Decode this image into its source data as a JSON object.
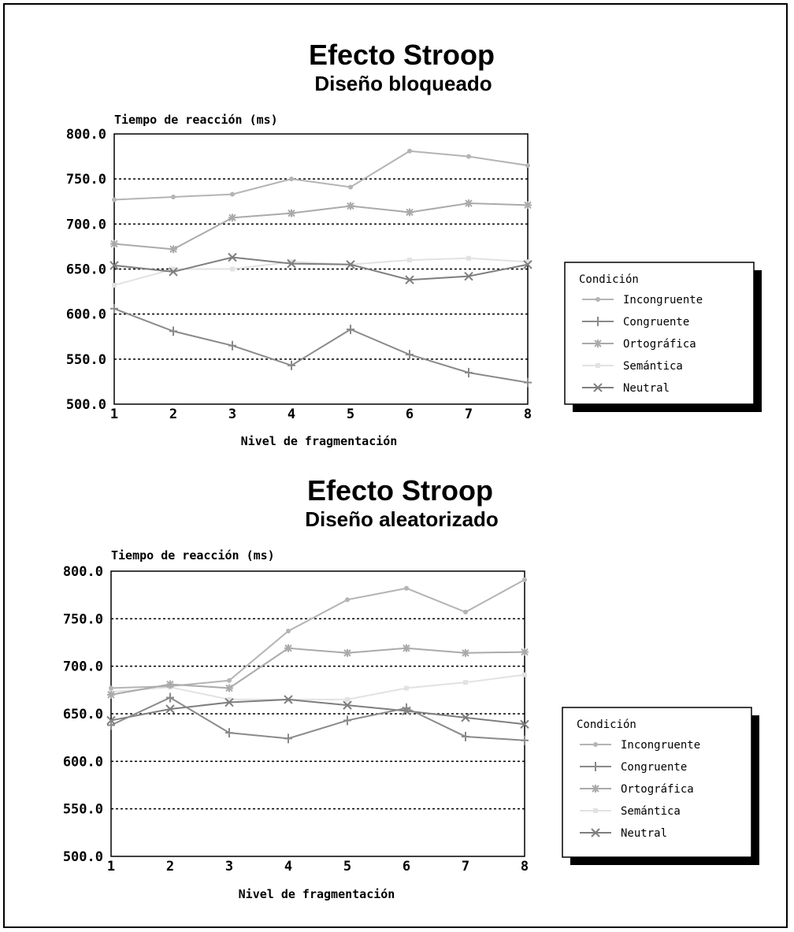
{
  "chart_data": [
    {
      "type": "line",
      "title": "Efecto Stroop",
      "subtitle": "Diseño bloqueado",
      "ylabel": "Tiempo de reacción (ms)",
      "xlabel": "Nivel de fragmentación",
      "x": [
        1,
        2,
        3,
        4,
        5,
        6,
        7,
        8
      ],
      "x_tick_labels": [
        "1",
        "2",
        "3",
        "4",
        "5",
        "6",
        "7",
        "8"
      ],
      "ylim": [
        500,
        800
      ],
      "y_tick_labels": [
        "800.0",
        "750.0",
        "700.0",
        "650.0",
        "600.0",
        "550.0",
        "500.0"
      ],
      "grid": "horizontal dotted",
      "legend": {
        "title": "Condición",
        "placement": "right",
        "entries": [
          "Incongruente",
          "Congruente",
          "Ortográfica",
          "Semántica",
          "Neutral"
        ]
      },
      "series": [
        {
          "name": "Incongruente",
          "marker": "dot",
          "color": "#b4b4b4",
          "values": [
            727,
            730,
            733,
            750,
            741,
            781,
            775,
            765
          ]
        },
        {
          "name": "Congruente",
          "marker": "plus",
          "color": "#8a8a8a",
          "values": [
            606,
            581,
            565,
            543,
            583,
            555,
            535,
            524
          ]
        },
        {
          "name": "Ortográfica",
          "marker": "asterisk",
          "color": "#aaaaaa",
          "values": [
            678,
            672,
            707,
            712,
            720,
            713,
            723,
            721
          ]
        },
        {
          "name": "Semántica",
          "marker": "square",
          "color": "#e2e2e2",
          "values": [
            632,
            650,
            650,
            658,
            655,
            660,
            662,
            658
          ]
        },
        {
          "name": "Neutral",
          "marker": "x",
          "color": "#7e7e7e",
          "values": [
            654,
            647,
            663,
            656,
            655,
            638,
            642,
            655
          ]
        }
      ]
    },
    {
      "type": "line",
      "title": "Efecto Stroop",
      "subtitle": "Diseño aleatorizado",
      "ylabel": "Tiempo de reacción (ms)",
      "xlabel": "Nivel de fragmentación",
      "x": [
        1,
        2,
        3,
        4,
        5,
        6,
        7,
        8
      ],
      "x_tick_labels": [
        "1",
        "2",
        "3",
        "4",
        "5",
        "6",
        "7",
        "8"
      ],
      "ylim": [
        500,
        800
      ],
      "y_tick_labels": [
        "800.0",
        "750.0",
        "700.0",
        "650.0",
        "600.0",
        "550.0",
        "500.0"
      ],
      "grid": "horizontal dotted",
      "legend": {
        "title": "Condición",
        "placement": "right",
        "entries": [
          "Incongruente",
          "Congruente",
          "Ortográfica",
          "Semántica",
          "Neutral"
        ]
      },
      "series": [
        {
          "name": "Incongruente",
          "marker": "dot",
          "color": "#b4b4b4",
          "values": [
            677,
            679,
            685,
            737,
            770,
            782,
            757,
            791
          ]
        },
        {
          "name": "Congruente",
          "marker": "plus",
          "color": "#8a8a8a",
          "values": [
            638,
            667,
            630,
            624,
            643,
            656,
            626,
            622
          ]
        },
        {
          "name": "Ortográfica",
          "marker": "asterisk",
          "color": "#aaaaaa",
          "values": [
            670,
            681,
            677,
            719,
            714,
            719,
            714,
            715
          ]
        },
        {
          "name": "Semántica",
          "marker": "square",
          "color": "#e2e2e2",
          "values": [
            673,
            678,
            665,
            665,
            665,
            677,
            683,
            691
          ]
        },
        {
          "name": "Neutral",
          "marker": "x",
          "color": "#7e7e7e",
          "values": [
            643,
            655,
            662,
            665,
            659,
            653,
            646,
            639
          ]
        }
      ]
    }
  ]
}
